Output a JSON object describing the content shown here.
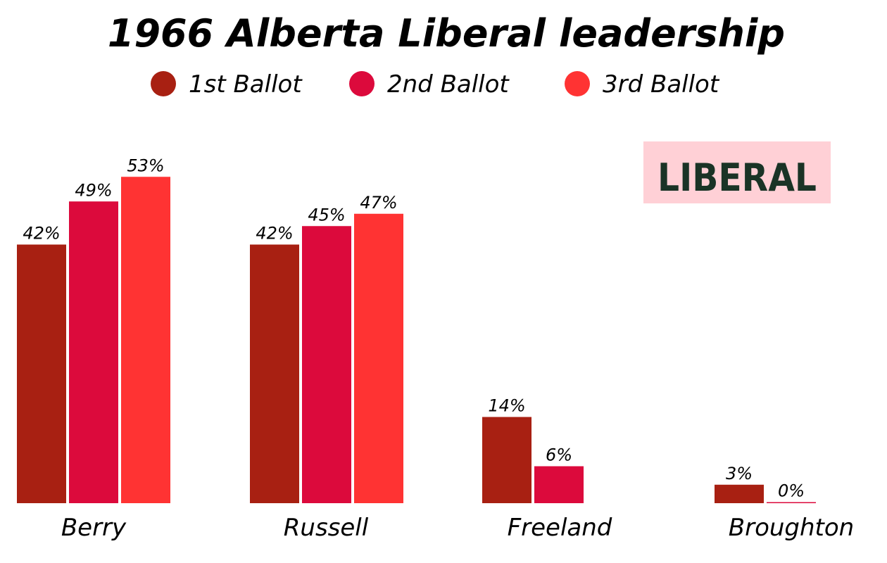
{
  "chart_data": {
    "type": "bar",
    "title": "1966 Alberta Liberal leadership",
    "categories": [
      "Berry",
      "Russell",
      "Freeland",
      "Broughton"
    ],
    "series": [
      {
        "name": "1st Ballot",
        "color": "#a82012",
        "values": [
          42,
          42,
          14,
          3
        ],
        "labels": [
          "42%",
          "42%",
          "14%",
          "3%"
        ]
      },
      {
        "name": "2nd Ballot",
        "color": "#dc0a3c",
        "values": [
          49,
          45,
          6,
          0
        ],
        "labels": [
          "49%",
          "45%",
          "6%",
          "0%"
        ]
      },
      {
        "name": "3rd Ballot",
        "color": "#ff3333",
        "values": [
          53,
          47,
          null,
          null
        ],
        "labels": [
          "53%",
          "47%",
          null,
          null
        ]
      }
    ],
    "xlabel": "",
    "ylabel": "",
    "ylim": [
      0,
      100
    ],
    "grid": false,
    "legend": "top-center",
    "logo_text": "LIBERAL",
    "logo_background": "#ffd0d6"
  }
}
